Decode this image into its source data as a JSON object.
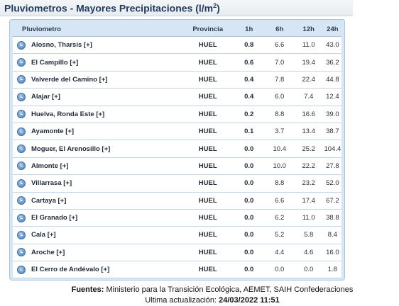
{
  "title": {
    "text": "Pluviometros - Mayores Precipitaciones (l/m",
    "superscript": "2",
    "suffix": ")"
  },
  "table": {
    "columns": {
      "name": "Pluviometro",
      "province": "Provincia",
      "h1": "1h",
      "h6": "6h",
      "h12": "12h",
      "h24": "24h"
    },
    "rows": [
      {
        "name": "Alosno, Tharsis [+]",
        "province": "HUEL",
        "h1": "0.8",
        "h6": "6.6",
        "h12": "11.0",
        "h24": "43.0"
      },
      {
        "name": "El Campillo [+]",
        "province": "HUEL",
        "h1": "0.6",
        "h6": "7.0",
        "h12": "19.4",
        "h24": "36.2"
      },
      {
        "name": "Valverde del Camino [+]",
        "province": "HUEL",
        "h1": "0.4",
        "h6": "7.8",
        "h12": "22.4",
        "h24": "44.8"
      },
      {
        "name": "Alajar [+]",
        "province": "HUEL",
        "h1": "0.4",
        "h6": "6.0",
        "h12": "7.4",
        "h24": "12.4"
      },
      {
        "name": "Huelva, Ronda Este [+]",
        "province": "HUEL",
        "h1": "0.2",
        "h6": "8.8",
        "h12": "16.6",
        "h24": "39.0"
      },
      {
        "name": "Ayamonte [+]",
        "province": "HUEL",
        "h1": "0.1",
        "h6": "3.7",
        "h12": "13.4",
        "h24": "38.7"
      },
      {
        "name": "Moguer, El Arenosillo [+]",
        "province": "HUEL",
        "h1": "0.0",
        "h6": "10.4",
        "h12": "25.2",
        "h24": "104.4"
      },
      {
        "name": "Almonte [+]",
        "province": "HUEL",
        "h1": "0.0",
        "h6": "10.0",
        "h12": "22.2",
        "h24": "27.8"
      },
      {
        "name": "Villarrasa [+]",
        "province": "HUEL",
        "h1": "0.0",
        "h6": "8.8",
        "h12": "23.2",
        "h24": "52.0"
      },
      {
        "name": "Cartaya [+]",
        "province": "HUEL",
        "h1": "0.0",
        "h6": "6.6",
        "h12": "17.4",
        "h24": "67.2"
      },
      {
        "name": "El Granado [+]",
        "province": "HUEL",
        "h1": "0.0",
        "h6": "6.2",
        "h12": "11.0",
        "h24": "38.8"
      },
      {
        "name": "Cala [+]",
        "province": "HUEL",
        "h1": "0.0",
        "h6": "5.2",
        "h12": "5.8",
        "h24": "8.4"
      },
      {
        "name": "Aroche [+]",
        "province": "HUEL",
        "h1": "0.0",
        "h6": "4.4",
        "h12": "4.6",
        "h24": "16.0"
      },
      {
        "name": "El Cerro de Andévalo [+]",
        "province": "HUEL",
        "h1": "0.0",
        "h6": "0.0",
        "h12": "0.0",
        "h24": "1.8"
      }
    ]
  },
  "footer": {
    "sources_label": "Fuentes:",
    "sources_text": " Ministerio para la Transición Ecológica, AEMET, SAIH Confederaciones",
    "update_label": "Ultima actualización: ",
    "update_value": "24/03/2022 11:51"
  },
  "icons": {
    "row_icon": "clock-icon"
  }
}
